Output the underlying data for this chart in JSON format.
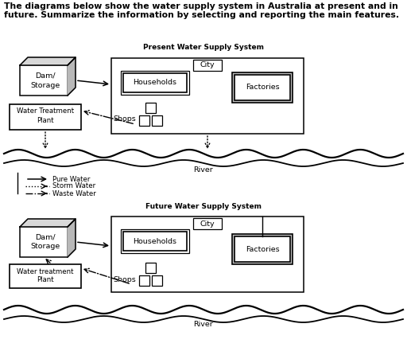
{
  "title_line1": "The diagrams below show the water supply system in Australia at present and in",
  "title_line2": "future. Summarize the information by selecting and reporting the main features.",
  "diagram1_title": "Present Water Supply System",
  "diagram2_title": "Future Water Supply System",
  "legend_items": [
    "Pure Water",
    "Storm Water",
    "Waste Water"
  ],
  "bg_color": "#ffffff",
  "river_label": "River",
  "title_fontsize": 7.8,
  "label_fontsize": 6.8,
  "small_fontsize": 6.2,
  "diagram_title_fontsize": 6.5
}
